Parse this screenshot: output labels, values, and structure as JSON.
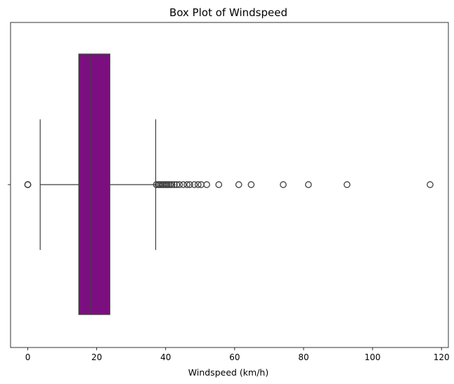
{
  "chart_data": {
    "type": "box",
    "title": "Box Plot of Windspeed",
    "xlabel": "Windspeed (km/h)",
    "ylabel": "",
    "xlim": [
      -5,
      122
    ],
    "xticks": [
      0,
      20,
      40,
      60,
      80,
      100,
      120
    ],
    "orientation": "horizontal",
    "box_color": "#7b0f7f",
    "stats": {
      "whisker_low": 3.6,
      "q1": 14.8,
      "median": 18.3,
      "q3": 23.8,
      "whisker_high": 37.1
    },
    "outliers": [
      0,
      0,
      0,
      37.3,
      37.8,
      38.2,
      38.6,
      39.1,
      39.5,
      40.0,
      40.4,
      40.8,
      41.3,
      41.8,
      42.5,
      43.2,
      44.0,
      45.1,
      46.2,
      47.0,
      48.3,
      49.4,
      50.3,
      51.9,
      55.4,
      61.2,
      64.8,
      74.1,
      81.4,
      92.6,
      116.7
    ]
  }
}
